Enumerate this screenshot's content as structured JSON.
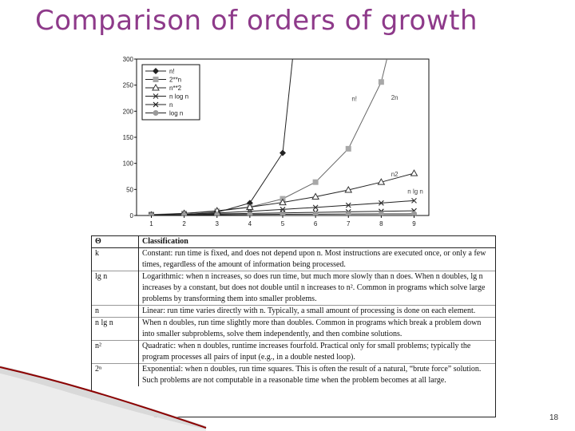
{
  "slide": {
    "title": "Comparison of orders of growth",
    "page_number": "18",
    "title_color": "#8e3a8a",
    "accent_color": "#8b0000"
  },
  "chart_data": {
    "type": "line",
    "categories": [
      1,
      2,
      3,
      4,
      5,
      6,
      7,
      8,
      9
    ],
    "ylim": [
      0,
      300
    ],
    "yticks": [
      0,
      50,
      100,
      150,
      200,
      250,
      300
    ],
    "xticks": [
      1,
      2,
      3,
      4,
      5,
      6,
      7,
      8,
      9
    ],
    "legend_position": "top-left",
    "series": [
      {
        "name": "n!",
        "marker": "diamond",
        "color": "#222222",
        "x": [
          1,
          2,
          3,
          4,
          5
        ],
        "values": [
          1,
          2,
          6,
          24,
          120
        ],
        "curve_label": "n!"
      },
      {
        "name": "2**n",
        "marker": "square",
        "color": "#a8a8a8",
        "x": [
          1,
          2,
          3,
          4,
          5,
          6,
          7,
          8
        ],
        "values": [
          2,
          4,
          8,
          16,
          32,
          64,
          128,
          256
        ],
        "curve_label": "2n"
      },
      {
        "name": "n**2",
        "marker": "triangle",
        "color": "#333333",
        "x": [
          1,
          2,
          3,
          4,
          5,
          6,
          7,
          8,
          9
        ],
        "values": [
          1,
          4,
          9,
          16,
          25,
          36,
          49,
          64,
          81
        ],
        "curve_label": "n2"
      },
      {
        "name": "n log n",
        "marker": "x",
        "color": "#333333",
        "x": [
          1,
          2,
          3,
          4,
          5,
          6,
          7,
          8,
          9
        ],
        "values": [
          0,
          2,
          4.8,
          8,
          11.6,
          15.5,
          19.7,
          24,
          28.5
        ],
        "curve_label": "n lg n"
      },
      {
        "name": "n",
        "marker": "x",
        "color": "#222222",
        "x": [
          1,
          2,
          3,
          4,
          5,
          6,
          7,
          8,
          9
        ],
        "values": [
          1,
          2,
          3,
          4,
          5,
          6,
          7,
          8,
          9
        ],
        "curve_label": ""
      },
      {
        "name": "log n",
        "marker": "circle",
        "color": "#9a9a9a",
        "x": [
          1,
          2,
          3,
          4,
          5,
          6,
          7,
          8,
          9
        ],
        "values": [
          0,
          1,
          1.58,
          2,
          2.32,
          2.58,
          2.81,
          3,
          3.17
        ],
        "curve_label": ""
      }
    ]
  },
  "table": {
    "headers": [
      "Θ",
      "Classification"
    ],
    "rows": [
      {
        "symbol": "k",
        "text": "Constant: run time is fixed, and does not depend upon n. Most instructions are executed once, or only a few times, regardless of the amount of information being processed."
      },
      {
        "symbol": "lg n",
        "text": "Logarithmic: when n increases, so does run time, but much more slowly than n does. When n doubles, lg n increases by a constant, but does not double until n increases to n². Common in programs which solve large problems by transforming them into smaller problems."
      },
      {
        "symbol": "n",
        "text": "Linear: run time varies directly with n. Typically, a small amount of processing is done on each element."
      },
      {
        "symbol": "n lg n",
        "text": "When n doubles, run time slightly more than doubles. Common in programs which break a problem down into smaller subproblems, solve them independently, and then combine solutions."
      },
      {
        "symbol": "n²",
        "text": "Quadratic: when n doubles, runtime increases fourfold. Practical only for small problems; typically the program processes all pairs of input (e.g., in a double nested loop)."
      },
      {
        "symbol": "2ⁿ",
        "text": "Exponential: when n doubles, run time squares. This is often the result of a natural, “brute force” solution. Such problems are not computable in a reasonable time when the problem becomes at all large."
      }
    ]
  }
}
